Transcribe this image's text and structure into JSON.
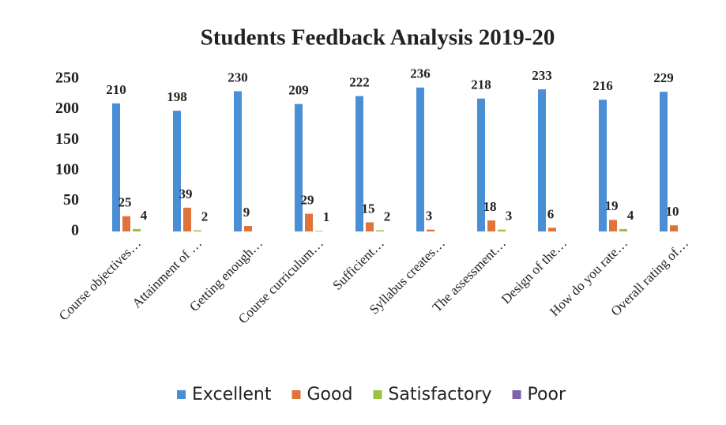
{
  "chart_data": {
    "type": "bar",
    "title": "Students Feedback Analysis 2019-20",
    "categories": [
      "Course objectives…",
      "Attainment of …",
      "Getting enough…",
      "Course curriculum…",
      "Sufficient…",
      "Syllabus creates…",
      "The assessment…",
      "Design of the…",
      "How do you rate…",
      "Overall rating of…"
    ],
    "series": [
      {
        "name": "Excellent",
        "color": "#4a8fd6",
        "values": [
          210,
          198,
          230,
          209,
          222,
          236,
          218,
          233,
          216,
          229
        ]
      },
      {
        "name": "Good",
        "color": "#e0733b",
        "values": [
          25,
          39,
          9,
          29,
          15,
          3,
          18,
          6,
          19,
          10
        ]
      },
      {
        "name": "Satisfactory",
        "color": "#9bc243",
        "values": [
          4,
          2,
          null,
          1,
          2,
          null,
          3,
          null,
          4,
          null
        ]
      },
      {
        "name": "Poor",
        "color": "#7d64a8",
        "values": [
          null,
          null,
          null,
          null,
          null,
          null,
          null,
          null,
          null,
          null
        ]
      }
    ],
    "ylim": [
      0,
      250
    ],
    "yticks": [
      0,
      50,
      100,
      150,
      200,
      250
    ],
    "legend": "bottom",
    "grid": false
  }
}
